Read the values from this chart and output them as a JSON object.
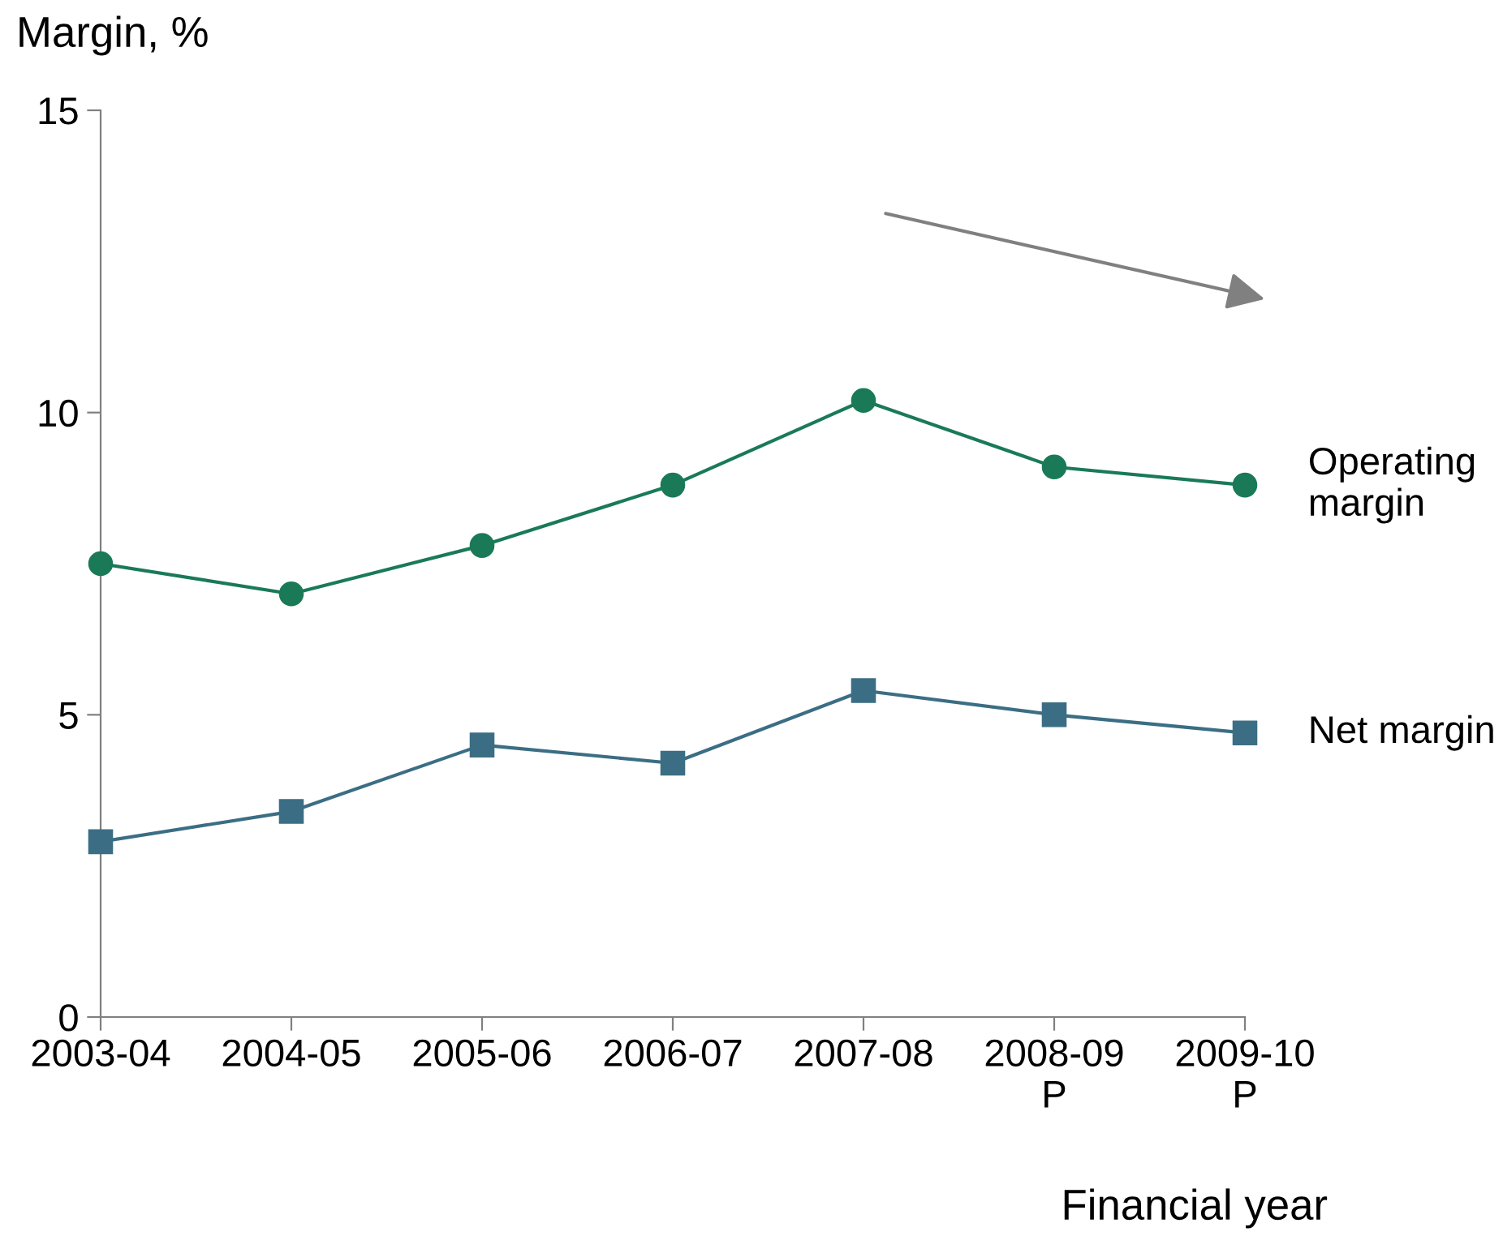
{
  "chart_data": {
    "type": "line",
    "ylabel": "Margin, %",
    "xlabel": "Financial year",
    "categories": [
      "2003-04",
      "2004-05",
      "2005-06",
      "2006-07",
      "2007-08",
      "2008-09\nP",
      "2009-10\nP"
    ],
    "series": [
      {
        "name": "Operating\nmargin",
        "color": "#1a7a58",
        "marker": "circle",
        "values": [
          7.5,
          7.0,
          7.8,
          8.8,
          10.2,
          9.1,
          8.8
        ]
      },
      {
        "name": "Net margin",
        "color": "#3b6e84",
        "marker": "square",
        "values": [
          2.9,
          3.4,
          4.5,
          4.2,
          5.4,
          5.0,
          4.7
        ]
      }
    ],
    "ylim": [
      0,
      15
    ],
    "yticks": [
      0,
      5,
      10,
      15
    ],
    "grid": false,
    "legend": false,
    "line_style": "solid"
  }
}
